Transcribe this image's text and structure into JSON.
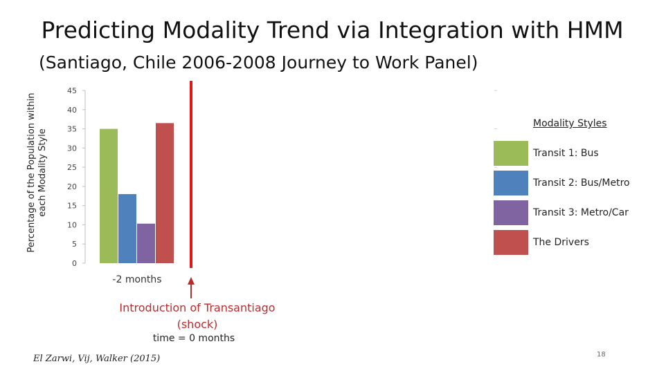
{
  "slide": {
    "title": "Predicting Modality Trend via Integration with HMM",
    "subtitle": "(Santiago, Chile 2006-2008 Journey to Work Panel)",
    "shock_label": "Introduction of Transantiago (shock)",
    "time_label": "time = 0 months",
    "citation": "El Zarwi, Vij, Walker (2015)",
    "page_number": "18"
  },
  "chart_data": {
    "type": "bar",
    "categories": [
      "-2 months"
    ],
    "series": [
      {
        "name": "Transit 1: Bus",
        "values": [
          35
        ],
        "color": "#9bbb59"
      },
      {
        "name": "Transit 2: Bus/Metro",
        "values": [
          18
        ],
        "color": "#4f81bd"
      },
      {
        "name": "Transit 3: Metro/Car",
        "values": [
          10.3
        ],
        "color": "#8064a2"
      },
      {
        "name": "The Drivers",
        "values": [
          36.5
        ],
        "color": "#c0504d"
      }
    ],
    "ylabel": "Percentage of the Population within each Modality Style",
    "ylim": [
      0,
      45
    ],
    "yticks": [
      0,
      5,
      10,
      15,
      20,
      25,
      30,
      35,
      40,
      45
    ],
    "legend_title": "Modality Styles",
    "legend_placement": "right",
    "grid": false,
    "marker": {
      "x": "time = 0 months",
      "color": "#e0181b"
    }
  }
}
